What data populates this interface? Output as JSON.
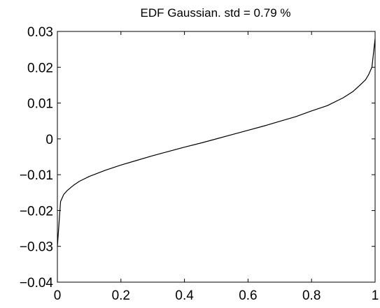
{
  "chart_data": {
    "type": "line",
    "title": "EDF Gaussian. std = 0.79 %",
    "xlabel": "",
    "ylabel": "",
    "xlim": [
      0,
      1
    ],
    "ylim": [
      -0.04,
      0.03
    ],
    "grid": false,
    "legend": "none",
    "x_ticks": [
      {
        "value": 0,
        "label": "0"
      },
      {
        "value": 0.2,
        "label": "0.2"
      },
      {
        "value": 0.4,
        "label": "0.4"
      },
      {
        "value": 0.6,
        "label": "0.6"
      },
      {
        "value": 0.8,
        "label": "0.8"
      },
      {
        "value": 1,
        "label": "1"
      }
    ],
    "y_ticks": [
      {
        "value": -0.04,
        "label": "−0.04"
      },
      {
        "value": -0.03,
        "label": "−0.03"
      },
      {
        "value": -0.02,
        "label": "−0.02"
      },
      {
        "value": -0.01,
        "label": "−0.01"
      },
      {
        "value": 0,
        "label": "0"
      },
      {
        "value": 0.01,
        "label": "0.01"
      },
      {
        "value": 0.02,
        "label": "0.02"
      },
      {
        "value": 0.03,
        "label": "0.03"
      }
    ],
    "series": [
      {
        "color": "#000000",
        "x": [
          0,
          0.01,
          0.02,
          0.03,
          0.05,
          0.07,
          0.1,
          0.15,
          0.2,
          0.25,
          0.3,
          0.35,
          0.4,
          0.45,
          0.5,
          0.55,
          0.6,
          0.65,
          0.7,
          0.75,
          0.8,
          0.85,
          0.9,
          0.93,
          0.95,
          0.97,
          0.98,
          0.99,
          1.0
        ],
        "y": [
          -0.03,
          -0.0175,
          -0.0155,
          -0.0145,
          -0.013,
          -0.0118,
          -0.0105,
          -0.0088,
          -0.0073,
          -0.006,
          -0.0047,
          -0.0035,
          -0.0023,
          -0.0012,
          0.0,
          0.0012,
          0.0024,
          0.0036,
          0.0049,
          0.0062,
          0.0078,
          0.0093,
          0.0115,
          0.0132,
          0.0148,
          0.0165,
          0.018,
          0.02,
          0.028
        ]
      }
    ]
  }
}
